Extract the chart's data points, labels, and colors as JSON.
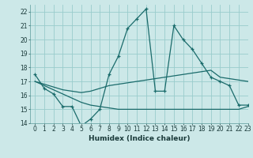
{
  "xlabel": "Humidex (Indice chaleur)",
  "bg_color": "#cce8e8",
  "grid_color": "#99cccc",
  "line_color": "#1a6b6b",
  "xlim": [
    -0.5,
    23
  ],
  "ylim": [
    14,
    22.5
  ],
  "yticks": [
    14,
    15,
    16,
    17,
    18,
    19,
    20,
    21,
    22
  ],
  "xticks": [
    0,
    1,
    2,
    3,
    4,
    5,
    6,
    7,
    8,
    9,
    10,
    11,
    12,
    13,
    14,
    15,
    16,
    17,
    18,
    19,
    20,
    21,
    22,
    23
  ],
  "line1_x": [
    0,
    1,
    2,
    3,
    4,
    5,
    6,
    7,
    8,
    9,
    10,
    11,
    12,
    13,
    14,
    15,
    16,
    17,
    18,
    19,
    20,
    21,
    22,
    23
  ],
  "line1_y": [
    17.5,
    16.5,
    16.1,
    15.2,
    15.2,
    13.8,
    14.3,
    15.0,
    17.5,
    18.8,
    20.8,
    21.5,
    22.2,
    16.3,
    16.3,
    21.0,
    20.0,
    19.3,
    18.3,
    17.3,
    17.0,
    16.7,
    15.3,
    15.3
  ],
  "line2_x": [
    0,
    1,
    2,
    3,
    4,
    5,
    6,
    7,
    8,
    9,
    10,
    11,
    12,
    13,
    14,
    15,
    16,
    17,
    18,
    19,
    20,
    21,
    22,
    23
  ],
  "line2_y": [
    17.0,
    16.8,
    16.6,
    16.4,
    16.3,
    16.2,
    16.3,
    16.5,
    16.7,
    16.8,
    16.9,
    17.0,
    17.1,
    17.2,
    17.3,
    17.4,
    17.5,
    17.6,
    17.7,
    17.8,
    17.3,
    17.2,
    17.1,
    17.0
  ],
  "line3_x": [
    0,
    1,
    2,
    3,
    4,
    5,
    6,
    7,
    8,
    9,
    10,
    11,
    12,
    13,
    14,
    15,
    16,
    17,
    18,
    19,
    20,
    21,
    22,
    23
  ],
  "line3_y": [
    17.0,
    16.7,
    16.4,
    16.1,
    15.8,
    15.5,
    15.3,
    15.2,
    15.1,
    15.0,
    15.0,
    15.0,
    15.0,
    15.0,
    15.0,
    15.0,
    15.0,
    15.0,
    15.0,
    15.0,
    15.0,
    15.0,
    15.0,
    15.2
  ]
}
